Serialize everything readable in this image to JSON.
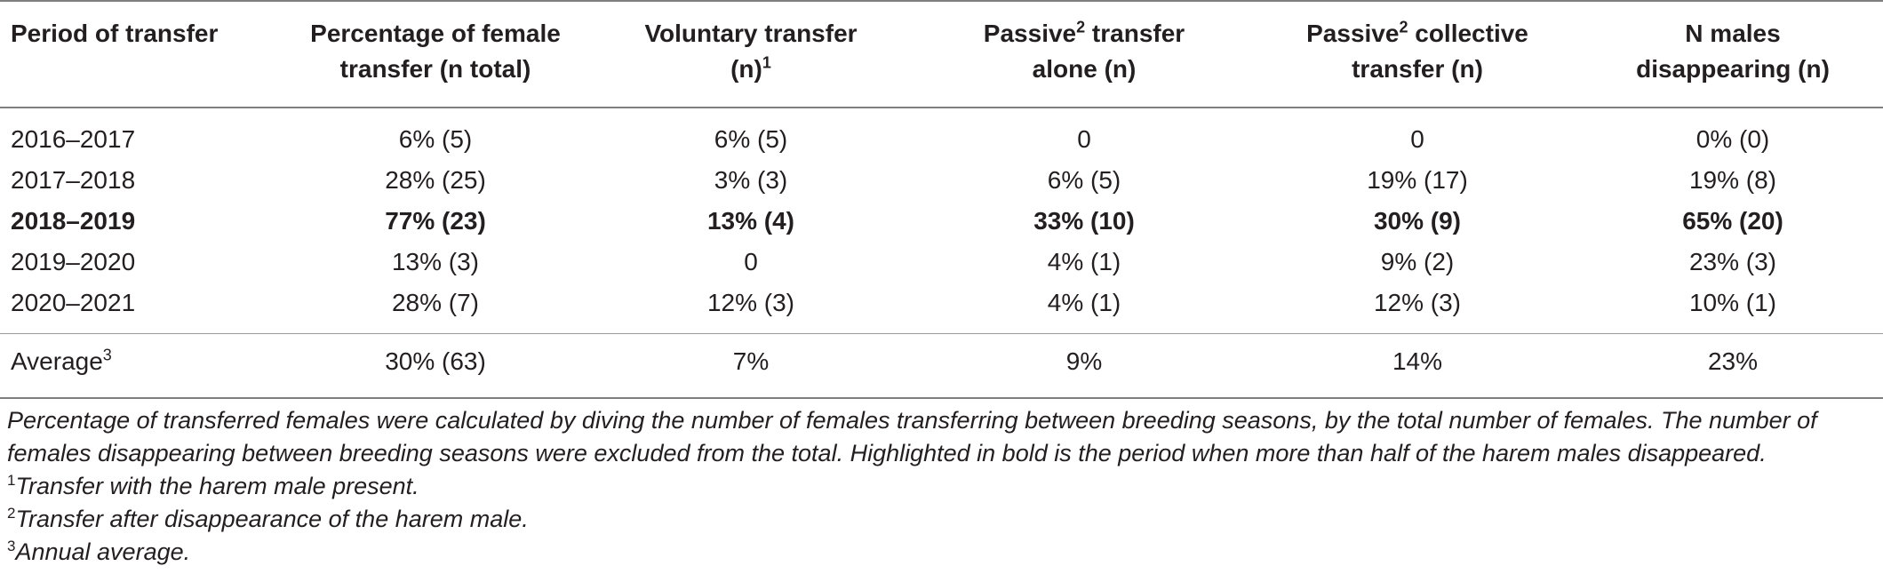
{
  "headers": [
    {
      "text": "Period of transfer"
    },
    {
      "line1": "Percentage of female",
      "line2": "transfer (n total)"
    },
    {
      "line1": "Voluntary transfer",
      "line2": "(n)",
      "sup": "1"
    },
    {
      "line1a": "Passive",
      "sup": "2",
      "line1b": " transfer",
      "line2": "alone (n)"
    },
    {
      "line1a": "Passive",
      "sup": "2",
      "line1b": " collective",
      "line2": "transfer (n)"
    },
    {
      "line1": "N males",
      "line2": "disappearing (n)"
    }
  ],
  "rows": [
    {
      "period": "2016–2017",
      "pct": "6% (5)",
      "voluntary": "6% (5)",
      "passive_alone": "0",
      "passive_collective": "0",
      "males": "0% (0)",
      "bold": false
    },
    {
      "period": "2017–2018",
      "pct": "28% (25)",
      "voluntary": "3% (3)",
      "passive_alone": "6% (5)",
      "passive_collective": "19% (17)",
      "males": "19% (8)",
      "bold": false
    },
    {
      "period": "2018–2019",
      "pct": "77% (23)",
      "voluntary": "13% (4)",
      "passive_alone": "33% (10)",
      "passive_collective": "30% (9)",
      "males": "65% (20)",
      "bold": true
    },
    {
      "period": "2019–2020",
      "pct": "13% (3)",
      "voluntary": "0",
      "passive_alone": "4% (1)",
      "passive_collective": "9% (2)",
      "males": "23% (3)",
      "bold": false
    },
    {
      "period": "2020–2021",
      "pct": "28% (7)",
      "voluntary": "12% (3)",
      "passive_alone": "4% (1)",
      "passive_collective": "12% (3)",
      "males": "10% (1)",
      "bold": false
    }
  ],
  "average": {
    "label": "Average",
    "sup": "3",
    "pct": "30% (63)",
    "voluntary": "7%",
    "passive_alone": "9%",
    "passive_collective": "14%",
    "males": "23%"
  },
  "notes": {
    "main": "Percentage of transferred females were calculated by diving the number of females transferring between breeding seasons, by the total number of females. The number of females disappearing between breeding seasons were excluded from the total. Highlighted in bold is the period when more than half of the harem males disappeared.",
    "footnotes": [
      {
        "mark": "1",
        "text": "Transfer with the harem male present."
      },
      {
        "mark": "2",
        "text": "Transfer after disappearance of the harem male."
      },
      {
        "mark": "3",
        "text": "Annual average."
      }
    ]
  }
}
